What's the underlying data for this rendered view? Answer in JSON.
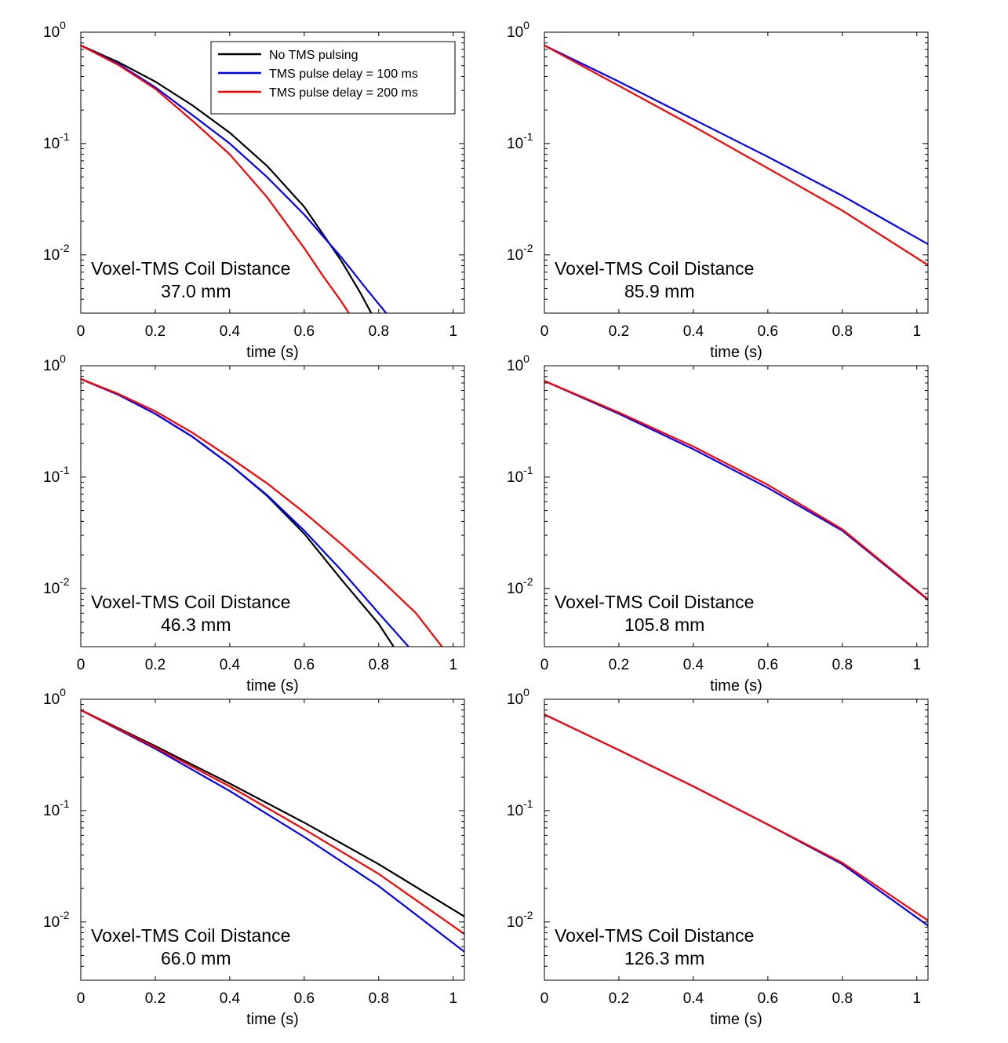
{
  "colors": {
    "no_tms": "#000000",
    "delay_100": "#0000ff",
    "delay_200": "#ff0000"
  },
  "legend": {
    "entries": [
      {
        "label": "No TMS pulsing",
        "color": "#000000"
      },
      {
        "label": "TMS pulse delay = 100 ms",
        "color": "#0000ff"
      },
      {
        "label": "TMS pulse delay = 200 ms",
        "color": "#ff0000"
      }
    ]
  },
  "chart_data": [
    {
      "type": "line",
      "panel": "top-left",
      "xlabel": "time (s)",
      "ylabel": "",
      "xlim": [
        0,
        1.03
      ],
      "ylim": [
        0.003,
        1
      ],
      "yscale": "log",
      "xticks": [
        0,
        0.2,
        0.4,
        0.6,
        0.8,
        1
      ],
      "xtick_labels": [
        "0",
        "0.2",
        "0.4",
        "0.6",
        "0.8",
        "1"
      ],
      "yticks": [
        0.01,
        0.1,
        1
      ],
      "ytick_base": [
        "10",
        "10",
        "10"
      ],
      "ytick_exp": [
        "-2",
        "-1",
        "0"
      ],
      "annotation_title": "Voxel-TMS Coil Distance",
      "annotation_value": "37.0 mm",
      "legend_position": "top-right",
      "series": [
        {
          "name": "No TMS pulsing",
          "color": "#000000",
          "x": [
            0,
            0.1,
            0.2,
            0.3,
            0.4,
            0.5,
            0.6,
            0.7,
            0.75,
            0.78
          ],
          "y": [
            0.76,
            0.54,
            0.36,
            0.22,
            0.125,
            0.063,
            0.027,
            0.0088,
            0.0046,
            0.003
          ]
        },
        {
          "name": "TMS pulse delay = 100 ms",
          "color": "#0000ff",
          "x": [
            0,
            0.1,
            0.2,
            0.3,
            0.4,
            0.5,
            0.6,
            0.7,
            0.77,
            0.82
          ],
          "y": [
            0.76,
            0.52,
            0.32,
            0.18,
            0.1,
            0.05,
            0.023,
            0.0095,
            0.0048,
            0.003
          ]
        },
        {
          "name": "TMS pulse delay = 200 ms",
          "color": "#ff0000",
          "x": [
            0,
            0.1,
            0.2,
            0.3,
            0.4,
            0.5,
            0.6,
            0.65,
            0.7,
            0.72
          ],
          "y": [
            0.76,
            0.51,
            0.31,
            0.16,
            0.08,
            0.033,
            0.0115,
            0.0065,
            0.0038,
            0.003
          ]
        }
      ]
    },
    {
      "type": "line",
      "panel": "top-right",
      "xlabel": "time (s)",
      "ylabel": "",
      "xlim": [
        0,
        1.03
      ],
      "ylim": [
        0.003,
        1
      ],
      "yscale": "log",
      "xticks": [
        0,
        0.2,
        0.4,
        0.6,
        0.8,
        1
      ],
      "xtick_labels": [
        "0",
        "0.2",
        "0.4",
        "0.6",
        "0.8",
        "1"
      ],
      "yticks": [
        0.01,
        0.1,
        1
      ],
      "ytick_base": [
        "10",
        "10",
        "10"
      ],
      "ytick_exp": [
        "-2",
        "-1",
        "0"
      ],
      "annotation_title": "Voxel-TMS Coil Distance",
      "annotation_value": "85.9 mm",
      "series": [
        {
          "name": "TMS pulse delay = 100 ms",
          "color": "#0000ff",
          "x": [
            0,
            0.2,
            0.4,
            0.6,
            0.8,
            1.03
          ],
          "y": [
            0.76,
            0.36,
            0.165,
            0.076,
            0.034,
            0.0125
          ]
        },
        {
          "name": "TMS pulse delay = 200 ms",
          "color": "#ff0000",
          "x": [
            0,
            0.2,
            0.4,
            0.6,
            0.8,
            1.03
          ],
          "y": [
            0.76,
            0.33,
            0.143,
            0.06,
            0.025,
            0.0081
          ]
        }
      ]
    },
    {
      "type": "line",
      "panel": "middle-left",
      "xlabel": "time (s)",
      "ylabel": "",
      "xlim": [
        0,
        1.03
      ],
      "ylim": [
        0.003,
        1
      ],
      "yscale": "log",
      "xticks": [
        0,
        0.2,
        0.4,
        0.6,
        0.8,
        1
      ],
      "xtick_labels": [
        "0",
        "0.2",
        "0.4",
        "0.6",
        "0.8",
        "1"
      ],
      "yticks": [
        0.01,
        0.1,
        1
      ],
      "ytick_base": [
        "10",
        "10",
        "10"
      ],
      "ytick_exp": [
        "-2",
        "-1",
        "0"
      ],
      "annotation_title": "Voxel-TMS Coil Distance",
      "annotation_value": "46.3 mm",
      "series": [
        {
          "name": "No TMS pulsing",
          "color": "#000000",
          "x": [
            0,
            0.1,
            0.2,
            0.3,
            0.4,
            0.5,
            0.6,
            0.7,
            0.8,
            0.84
          ],
          "y": [
            0.76,
            0.55,
            0.37,
            0.23,
            0.13,
            0.068,
            0.031,
            0.012,
            0.0048,
            0.003
          ]
        },
        {
          "name": "TMS pulse delay = 100 ms",
          "color": "#0000ff",
          "x": [
            0,
            0.1,
            0.2,
            0.3,
            0.4,
            0.5,
            0.6,
            0.7,
            0.8,
            0.88
          ],
          "y": [
            0.76,
            0.55,
            0.37,
            0.23,
            0.13,
            0.069,
            0.033,
            0.0145,
            0.006,
            0.003
          ]
        },
        {
          "name": "TMS pulse delay = 200 ms",
          "color": "#ff0000",
          "x": [
            0,
            0.1,
            0.2,
            0.3,
            0.4,
            0.5,
            0.6,
            0.7,
            0.8,
            0.9,
            0.97
          ],
          "y": [
            0.76,
            0.56,
            0.39,
            0.25,
            0.15,
            0.088,
            0.048,
            0.025,
            0.0125,
            0.006,
            0.003
          ]
        }
      ]
    },
    {
      "type": "line",
      "panel": "middle-right",
      "xlabel": "time (s)",
      "ylabel": "",
      "xlim": [
        0,
        1.03
      ],
      "ylim": [
        0.003,
        1
      ],
      "yscale": "log",
      "xticks": [
        0,
        0.2,
        0.4,
        0.6,
        0.8,
        1
      ],
      "xtick_labels": [
        "0",
        "0.2",
        "0.4",
        "0.6",
        "0.8",
        "1"
      ],
      "yticks": [
        0.01,
        0.1,
        1
      ],
      "ytick_base": [
        "10",
        "10",
        "10"
      ],
      "ytick_exp": [
        "-2",
        "-1",
        "0"
      ],
      "annotation_title": "Voxel-TMS Coil Distance",
      "annotation_value": "105.8 mm",
      "series": [
        {
          "name": "TMS pulse delay = 100 ms",
          "color": "#0000ff",
          "x": [
            0,
            0.2,
            0.4,
            0.6,
            0.8,
            1.03
          ],
          "y": [
            0.73,
            0.37,
            0.178,
            0.08,
            0.033,
            0.0079
          ]
        },
        {
          "name": "TMS pulse delay = 200 ms",
          "color": "#ff0000",
          "x": [
            0,
            0.2,
            0.4,
            0.6,
            0.8,
            1.03
          ],
          "y": [
            0.73,
            0.38,
            0.188,
            0.085,
            0.034,
            0.008
          ]
        }
      ]
    },
    {
      "type": "line",
      "panel": "bottom-left",
      "xlabel": "time (s)",
      "ylabel": "",
      "xlim": [
        0,
        1.03
      ],
      "ylim": [
        0.003,
        1
      ],
      "yscale": "log",
      "xticks": [
        0,
        0.2,
        0.4,
        0.6,
        0.8,
        1
      ],
      "xtick_labels": [
        "0",
        "0.2",
        "0.4",
        "0.6",
        "0.8",
        "1"
      ],
      "yticks": [
        0.01,
        0.1,
        1
      ],
      "ytick_base": [
        "10",
        "10",
        "10"
      ],
      "ytick_exp": [
        "-2",
        "-1",
        "0"
      ],
      "annotation_title": "Voxel-TMS Coil Distance",
      "annotation_value": "66.0 mm",
      "series": [
        {
          "name": "No TMS pulsing",
          "color": "#000000",
          "x": [
            0,
            0.2,
            0.4,
            0.6,
            0.8,
            1.03
          ],
          "y": [
            0.8,
            0.38,
            0.175,
            0.078,
            0.033,
            0.0112
          ]
        },
        {
          "name": "TMS pulse delay = 100 ms",
          "color": "#0000ff",
          "x": [
            0,
            0.2,
            0.4,
            0.6,
            0.8,
            1.03
          ],
          "y": [
            0.8,
            0.36,
            0.15,
            0.058,
            0.021,
            0.0054
          ]
        },
        {
          "name": "TMS pulse delay = 200 ms",
          "color": "#ff0000",
          "x": [
            0,
            0.2,
            0.4,
            0.6,
            0.8,
            1.03
          ],
          "y": [
            0.8,
            0.37,
            0.165,
            0.068,
            0.027,
            0.0078
          ]
        }
      ]
    },
    {
      "type": "line",
      "panel": "bottom-right",
      "xlabel": "time (s)",
      "ylabel": "",
      "xlim": [
        0,
        1.03
      ],
      "ylim": [
        0.003,
        1
      ],
      "yscale": "log",
      "xticks": [
        0,
        0.2,
        0.4,
        0.6,
        0.8,
        1
      ],
      "xtick_labels": [
        "0",
        "0.2",
        "0.4",
        "0.6",
        "0.8",
        "1"
      ],
      "yticks": [
        0.01,
        0.1,
        1
      ],
      "ytick_base": [
        "10",
        "10",
        "10"
      ],
      "ytick_exp": [
        "-2",
        "-1",
        "0"
      ],
      "annotation_title": "Voxel-TMS Coil Distance",
      "annotation_value": "126.3 mm",
      "series": [
        {
          "name": "TMS pulse delay = 100 ms",
          "color": "#0000ff",
          "x": [
            0,
            0.2,
            0.4,
            0.6,
            0.8,
            1.03
          ],
          "y": [
            0.73,
            0.35,
            0.165,
            0.075,
            0.033,
            0.0093
          ]
        },
        {
          "name": "TMS pulse delay = 200 ms",
          "color": "#ff0000",
          "x": [
            0,
            0.2,
            0.4,
            0.6,
            0.8,
            1.03
          ],
          "y": [
            0.73,
            0.35,
            0.165,
            0.075,
            0.034,
            0.0103
          ]
        }
      ]
    }
  ]
}
